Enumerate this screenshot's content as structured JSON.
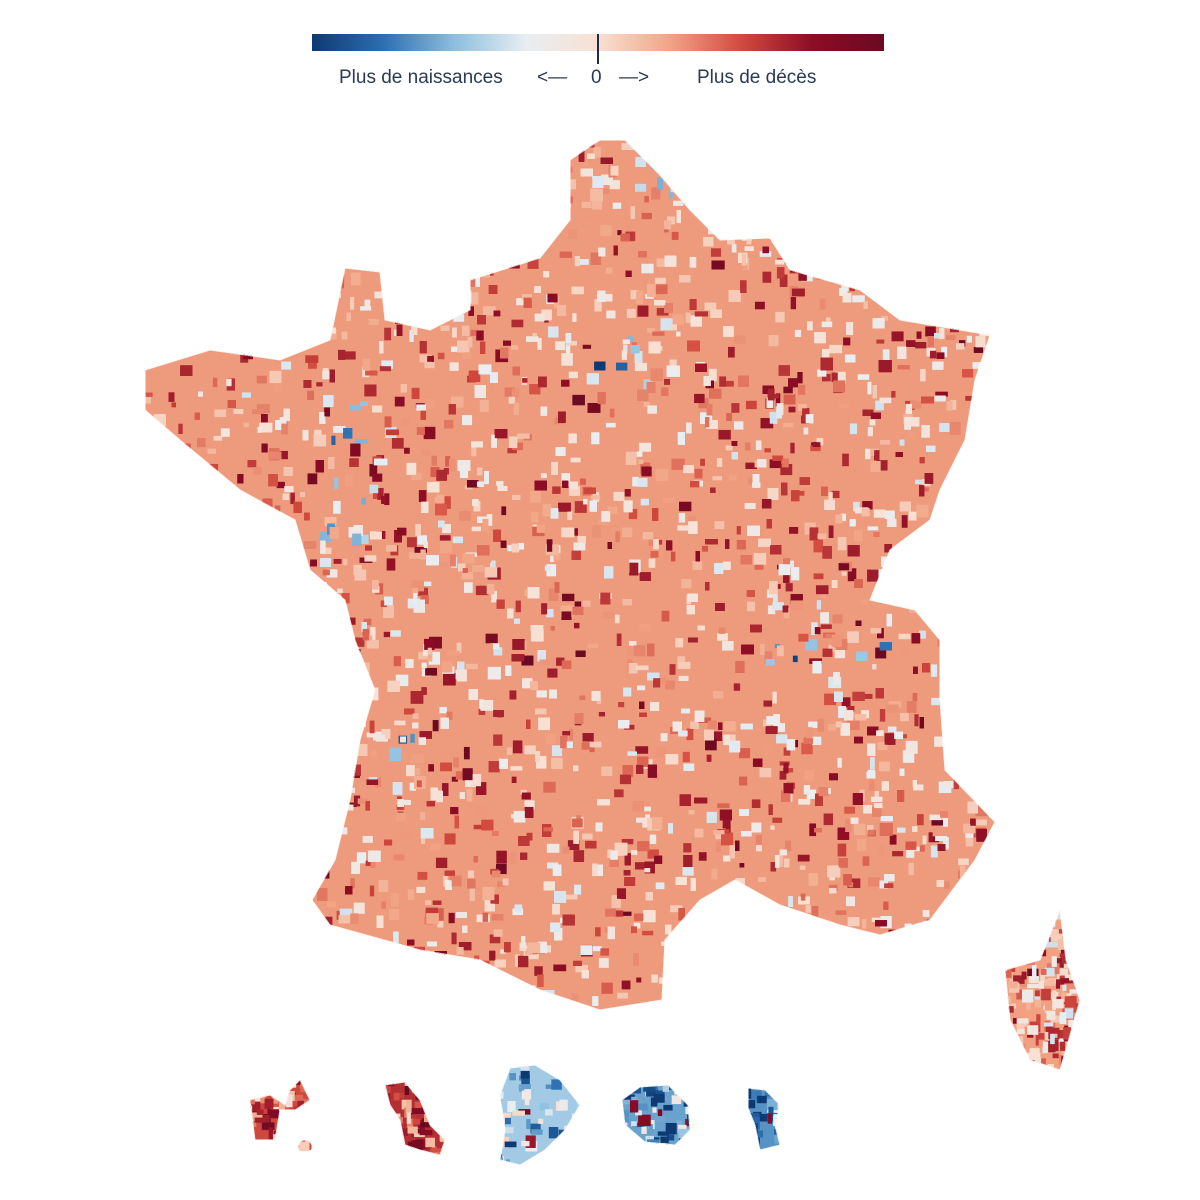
{
  "legend": {
    "left_label": "Plus de naissances",
    "left_arrow": "<—",
    "center_label": "0",
    "right_arrow": "—>",
    "right_label": "Plus de décès",
    "colors": [
      "#0d3a73",
      "#2c6fb0",
      "#8dbfdf",
      "#e8eef2",
      "#f8e0d3",
      "#f2a585",
      "#d24a3e",
      "#8c0c25",
      "#6a0a22"
    ],
    "tick_color": "#1b2b4b"
  },
  "map": {
    "regions": [
      "France métropolitaine",
      "Corse",
      "Guadeloupe",
      "Martinique",
      "Guyane",
      "La Réunion",
      "Mayotte"
    ],
    "scale": "diverging blue-red, centered at 0"
  }
}
